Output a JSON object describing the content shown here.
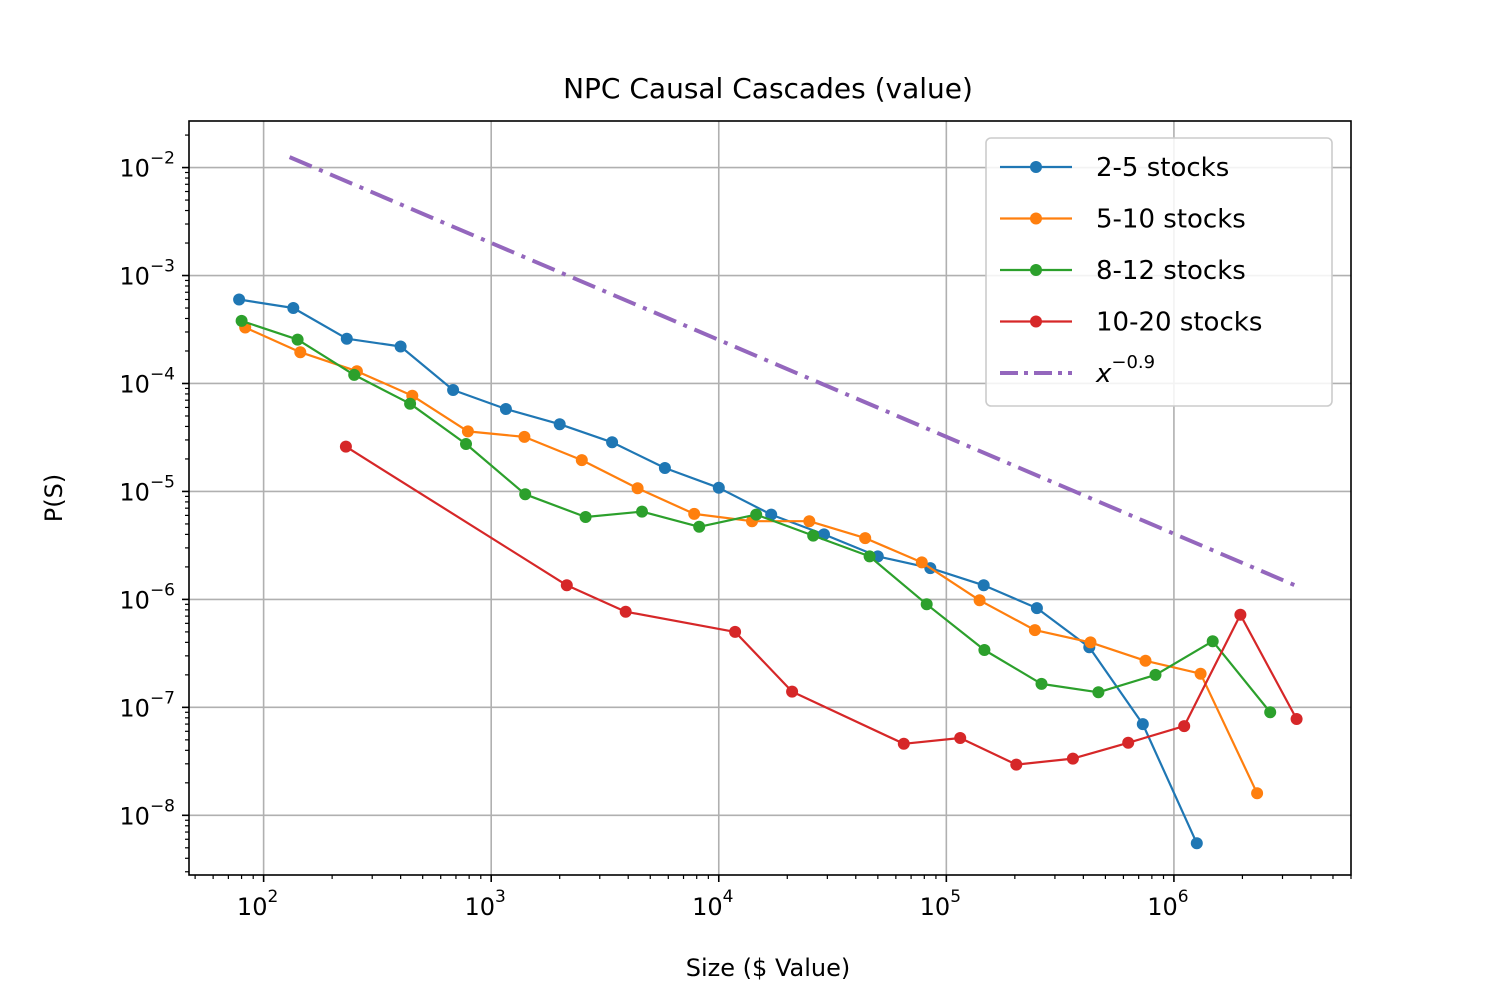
{
  "chart_data": {
    "type": "line",
    "title": "NPC Causal Cascades (value)",
    "xlabel": "Size ($ Value)",
    "ylabel": "P(S)",
    "xscale": "log",
    "yscale": "log",
    "xlim": [
      47,
      6000000
    ],
    "ylim": [
      2.8e-09,
      0.027
    ],
    "grid": true,
    "legend_position": "top-right",
    "x_ticks": [
      {
        "value": 100,
        "base": "10",
        "exp": "2"
      },
      {
        "value": 1000,
        "base": "10",
        "exp": "3"
      },
      {
        "value": 10000,
        "base": "10",
        "exp": "4"
      },
      {
        "value": 100000,
        "base": "10",
        "exp": "5"
      },
      {
        "value": 1000000,
        "base": "10",
        "exp": "6"
      }
    ],
    "y_ticks": [
      {
        "value": 1e-08,
        "base": "10",
        "exp": "−8"
      },
      {
        "value": 1e-07,
        "base": "10",
        "exp": "−7"
      },
      {
        "value": 1e-06,
        "base": "10",
        "exp": "−6"
      },
      {
        "value": 1e-05,
        "base": "10",
        "exp": "−5"
      },
      {
        "value": 0.0001,
        "base": "10",
        "exp": "−4"
      },
      {
        "value": 0.001,
        "base": "10",
        "exp": "−3"
      },
      {
        "value": 0.01,
        "base": "10",
        "exp": "−2"
      }
    ],
    "series": [
      {
        "name": "2-5 stocks",
        "color": "#1f77b4",
        "points": [
          [
            78,
            0.0006
          ],
          [
            135,
            0.0005
          ],
          [
            232,
            0.00026
          ],
          [
            400,
            0.00022
          ],
          [
            680,
            8.7e-05
          ],
          [
            1160,
            5.8e-05
          ],
          [
            2000,
            4.2e-05
          ],
          [
            3400,
            2.85e-05
          ],
          [
            5800,
            1.65e-05
          ],
          [
            10000,
            1.08e-05
          ],
          [
            17000,
            6.1e-06
          ],
          [
            29000,
            4e-06
          ],
          [
            50000,
            2.5e-06
          ],
          [
            85000,
            1.95e-06
          ],
          [
            146000,
            1.35e-06
          ],
          [
            250000,
            8.3e-07
          ],
          [
            425000,
            3.6e-07
          ],
          [
            730000,
            7e-08
          ],
          [
            1260000,
            5.5e-09
          ]
        ]
      },
      {
        "name": "5-10 stocks",
        "color": "#ff7f0e",
        "points": [
          [
            83,
            0.00033
          ],
          [
            145,
            0.000195
          ],
          [
            257,
            0.00013
          ],
          [
            450,
            7.7e-05
          ],
          [
            790,
            3.6e-05
          ],
          [
            1400,
            3.2e-05
          ],
          [
            2500,
            1.95e-05
          ],
          [
            4400,
            1.07e-05
          ],
          [
            7800,
            6.2e-06
          ],
          [
            14000,
            5.3e-06
          ],
          [
            25000,
            5.3e-06
          ],
          [
            44000,
            3.7e-06
          ],
          [
            78000,
            2.2e-06
          ],
          [
            140000,
            9.8e-07
          ],
          [
            245000,
            5.2e-07
          ],
          [
            430000,
            4e-07
          ],
          [
            750000,
            2.7e-07
          ],
          [
            1310000,
            2.05e-07
          ],
          [
            2320000,
            1.6e-08
          ]
        ]
      },
      {
        "name": "8-12 stocks",
        "color": "#2ca02c",
        "points": [
          [
            80,
            0.00038
          ],
          [
            141,
            0.000255
          ],
          [
            250,
            0.00012
          ],
          [
            440,
            6.5e-05
          ],
          [
            775,
            2.75e-05
          ],
          [
            1410,
            9.4e-06
          ],
          [
            2600,
            5.8e-06
          ],
          [
            4600,
            6.5e-06
          ],
          [
            8200,
            4.7e-06
          ],
          [
            14600,
            6.1e-06
          ],
          [
            26000,
            3.9e-06
          ],
          [
            46000,
            2.5e-06
          ],
          [
            82000,
            9e-07
          ],
          [
            147000,
            3.4e-07
          ],
          [
            262000,
            1.65e-07
          ],
          [
            466000,
            1.38e-07
          ],
          [
            830000,
            2e-07
          ],
          [
            1480000,
            4.1e-07
          ],
          [
            2650000,
            9e-08
          ]
        ]
      },
      {
        "name": "10-20 stocks",
        "color": "#d62728",
        "points": [
          [
            230,
            2.6e-05
          ],
          [
            2150,
            1.35e-06
          ],
          [
            3900,
            7.7e-07
          ],
          [
            11800,
            5e-07
          ],
          [
            21000,
            1.4e-07
          ],
          [
            65000,
            4.6e-08
          ],
          [
            115000,
            5.2e-08
          ],
          [
            203000,
            2.95e-08
          ],
          [
            360000,
            3.35e-08
          ],
          [
            630000,
            4.7e-08
          ],
          [
            1110000,
            6.7e-08
          ],
          [
            1960000,
            7.2e-07
          ],
          [
            3460000,
            7.8e-08
          ]
        ]
      }
    ],
    "reference_line": {
      "name_base": "x",
      "name_exp": "−0.9",
      "color": "#9467bd",
      "style": "dash-dot",
      "points": [
        [
          130,
          0.0125
        ],
        [
          3460000,
          1.33e-06
        ]
      ]
    }
  }
}
